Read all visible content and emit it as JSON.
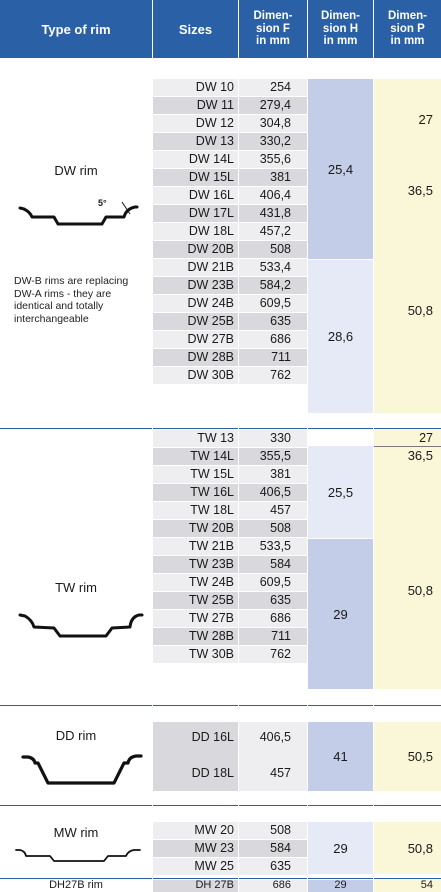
{
  "header": {
    "type_of_rim": "Type of rim",
    "sizes": "Sizes",
    "dim_f": "Dimen-\nsion F\nin mm",
    "dim_h": "Dimen-\nsion H\nin mm",
    "dim_p": "Dimen-\nsion P\nin mm"
  },
  "colors": {
    "header": "#2a61a6",
    "row_light": "#eeeef0",
    "row_dark": "#d9d9dd",
    "h_dark": "#c3cde8",
    "h_light": "#e6e9f6",
    "p_bg": "#faf6d8",
    "separator": "#2a61a6"
  },
  "groups": {
    "dw": {
      "name": "DW rim",
      "angle_label": "5°",
      "note": "DW-B rims are replacing DW-A rims - they are identical and totally interchangeable",
      "rows": [
        {
          "size": "DW 10",
          "f": "254"
        },
        {
          "size": "DW 11",
          "f": "279,4"
        },
        {
          "size": "DW 12",
          "f": "304,8"
        },
        {
          "size": "DW 13",
          "f": "330,2"
        },
        {
          "size": "DW 14L",
          "f": "355,6"
        },
        {
          "size": "DW 15L",
          "f": "381"
        },
        {
          "size": "DW 16L",
          "f": "406,4"
        },
        {
          "size": "DW 17L",
          "f": "431,8"
        },
        {
          "size": "DW 18L",
          "f": "457,2"
        },
        {
          "size": "DW 20B",
          "f": "508"
        },
        {
          "size": "DW 21B",
          "f": "533,4"
        },
        {
          "size": "DW 23B",
          "f": "584,2"
        },
        {
          "size": "DW 24B",
          "f": "609,5"
        },
        {
          "size": "DW 25B",
          "f": "635"
        },
        {
          "size": "DW 27B",
          "f": "686"
        },
        {
          "size": "DW 28B",
          "f": "711"
        },
        {
          "size": "DW 30B",
          "f": "762"
        }
      ],
      "h_values": [
        "25,4",
        "28,6"
      ],
      "p_values": [
        "27",
        "36,5",
        "50,8"
      ]
    },
    "tw": {
      "name": "TW rim",
      "rows": [
        {
          "size": "TW 13",
          "f": "330"
        },
        {
          "size": "TW 14L",
          "f": "355,5"
        },
        {
          "size": "TW 15L",
          "f": "381"
        },
        {
          "size": "TW 16L",
          "f": "406,5"
        },
        {
          "size": "TW 18L",
          "f": "457"
        },
        {
          "size": "TW 20B",
          "f": "508"
        },
        {
          "size": "TW 21B",
          "f": "533,5"
        },
        {
          "size": "TW 23B",
          "f": "584"
        },
        {
          "size": "TW 24B",
          "f": "609,5"
        },
        {
          "size": "TW 25B",
          "f": "635"
        },
        {
          "size": "TW 27B",
          "f": "686"
        },
        {
          "size": "TW 28B",
          "f": "711"
        },
        {
          "size": "TW 30B",
          "f": "762"
        }
      ],
      "h_values": [
        "25,5",
        "29"
      ],
      "p_values": [
        "27",
        "36,5",
        "50,8"
      ]
    },
    "dd": {
      "name": "DD rim",
      "rows": [
        {
          "size": "DD 16L",
          "f": "406,5"
        },
        {
          "size": "DD 18L",
          "f": "457"
        }
      ],
      "h": "41",
      "p": "50,5"
    },
    "mw": {
      "name": "MW rim",
      "rows": [
        {
          "size": "MW 20",
          "f": "508"
        },
        {
          "size": "MW 23",
          "f": "584"
        },
        {
          "size": "MW 25",
          "f": "635"
        }
      ],
      "h": "29",
      "p": "50,8"
    },
    "dh": {
      "name": "DH27B rim",
      "rows": [
        {
          "size": "DH 27B",
          "f": "686"
        }
      ],
      "h": "29",
      "p": "54"
    }
  }
}
